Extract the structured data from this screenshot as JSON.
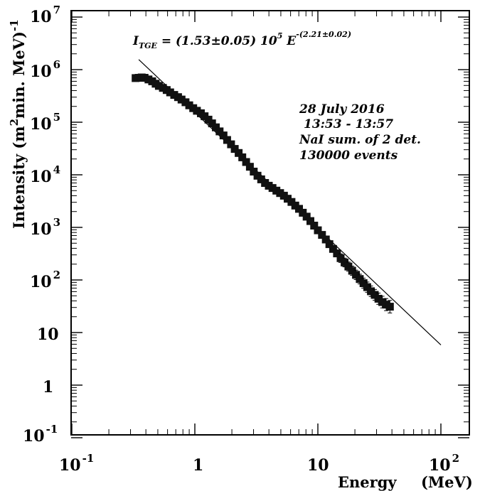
{
  "chart_data": {
    "type": "scatter",
    "x_scale": "log",
    "y_scale": "log",
    "xlim": [
      0.1,
      200
    ],
    "ylim": [
      0.1,
      10000000
    ],
    "x_ticks": [
      {
        "value": 0.1,
        "base": "10",
        "exp": "-1"
      },
      {
        "value": 1,
        "base": "1",
        "exp": ""
      },
      {
        "value": 10,
        "base": "10",
        "exp": ""
      },
      {
        "value": 100,
        "base": "10",
        "exp": "2"
      }
    ],
    "y_ticks": [
      {
        "value": 0.1,
        "base": "10",
        "exp": "-1"
      },
      {
        "value": 1,
        "base": "1",
        "exp": ""
      },
      {
        "value": 10,
        "base": "10",
        "exp": ""
      },
      {
        "value": 100,
        "base": "10",
        "exp": "2"
      },
      {
        "value": 1000,
        "base": "10",
        "exp": "3"
      },
      {
        "value": 10000,
        "base": "10",
        "exp": "4"
      },
      {
        "value": 100000,
        "base": "10",
        "exp": "5"
      },
      {
        "value": 1000000,
        "base": "10",
        "exp": "6"
      },
      {
        "value": 10000000,
        "base": "10",
        "exp": "7"
      }
    ],
    "xlabel": "Energy",
    "xlabel_unit": "(MeV)",
    "ylabel_main": "Intensity (m",
    "ylabel_sup": "2",
    "ylabel_rest": "min. MeV)",
    "ylabel_exp": "-1",
    "formula": {
      "lhs": "I",
      "lhs_sub": "TGE",
      "mid": " = (1.53±0.05) 10",
      "exp10": "5",
      "e": " E",
      "exp_e": "-(2.21±0.02)"
    },
    "annotations": [
      "28 July  2016",
      "13:53 - 13:57",
      "NaI   sum. of 2 det.",
      "130000 events"
    ],
    "fit_line": {
      "amplitude": 153000,
      "index": -2.21,
      "x_range": [
        0.35,
        100
      ]
    },
    "series": [
      {
        "x": [
          0.33,
          0.35,
          0.37,
          0.39,
          0.42,
          0.45,
          0.48,
          0.51,
          0.55,
          0.59,
          0.63,
          0.68,
          0.73,
          0.78,
          0.84,
          0.9,
          0.97,
          1.04,
          1.12,
          1.2,
          1.29,
          1.38,
          1.48,
          1.59,
          1.71,
          1.83,
          1.97,
          2.11,
          2.27,
          2.43,
          2.61,
          2.8,
          3.01,
          3.23,
          3.46,
          3.72,
          3.99,
          4.28,
          4.6,
          4.93,
          5.3,
          5.68,
          6.1,
          6.55,
          7.03,
          7.54,
          8.1,
          8.69,
          9.33,
          10.0,
          10.8,
          11.6,
          12.4,
          13.3,
          14.3,
          15.3,
          16.5,
          17.7,
          19.0,
          20.4,
          21.9,
          23.5,
          25.2,
          27.0,
          29.0,
          31.1,
          33.4,
          35.9,
          38.5
        ],
        "y": [
          690000,
          700000,
          710000,
          700000,
          650000,
          600000,
          540000,
          490000,
          450000,
          410000,
          370000,
          330000,
          300000,
          270000,
          240000,
          210000,
          185000,
          165000,
          148000,
          130000,
          112000,
          95000,
          80000,
          67000,
          56000,
          46000,
          38000,
          31000,
          26000,
          21500,
          17500,
          14200,
          11500,
          9600,
          8200,
          7000,
          6200,
          5600,
          5000,
          4500,
          4000,
          3500,
          3050,
          2600,
          2250,
          1900,
          1600,
          1320,
          1080,
          880,
          720,
          590,
          480,
          390,
          320,
          260,
          215,
          180,
          150,
          125,
          104,
          87,
          73,
          61,
          52,
          44,
          38,
          34,
          31
        ]
      }
    ]
  }
}
